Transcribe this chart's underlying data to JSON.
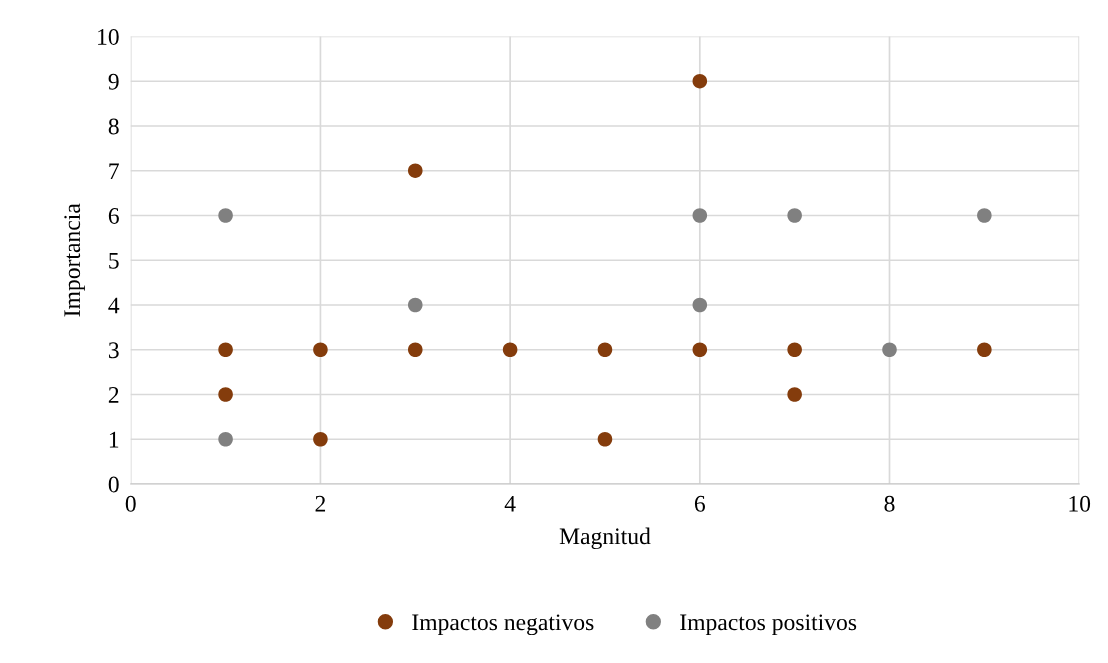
{
  "chart_data": {
    "type": "scatter",
    "xlabel": "Magnitud",
    "ylabel": "Importancia",
    "xlim": [
      0,
      10
    ],
    "xticks": [
      0,
      2,
      4,
      6,
      8,
      10
    ],
    "ylim": [
      0,
      10
    ],
    "yticks": [
      0,
      1,
      2,
      3,
      4,
      5,
      6,
      7,
      8,
      9,
      10
    ],
    "grid": true,
    "legend": "bottom",
    "marker": "circle",
    "series": [
      {
        "name": "Impactos negativos",
        "color": "#843c0c",
        "x": [
          1,
          1,
          2,
          2,
          3,
          3,
          4,
          5,
          5,
          6,
          6,
          7,
          7,
          9
        ],
        "values": [
          3,
          2,
          3,
          1,
          7,
          3,
          3,
          3,
          1,
          9,
          3,
          3,
          2,
          3
        ]
      },
      {
        "name": "Impactos positivos",
        "color": "#808080",
        "x": [
          1,
          1,
          3,
          6,
          6,
          7,
          8,
          9
        ],
        "values": [
          6,
          1,
          4,
          6,
          4,
          6,
          3,
          6
        ]
      }
    ]
  }
}
